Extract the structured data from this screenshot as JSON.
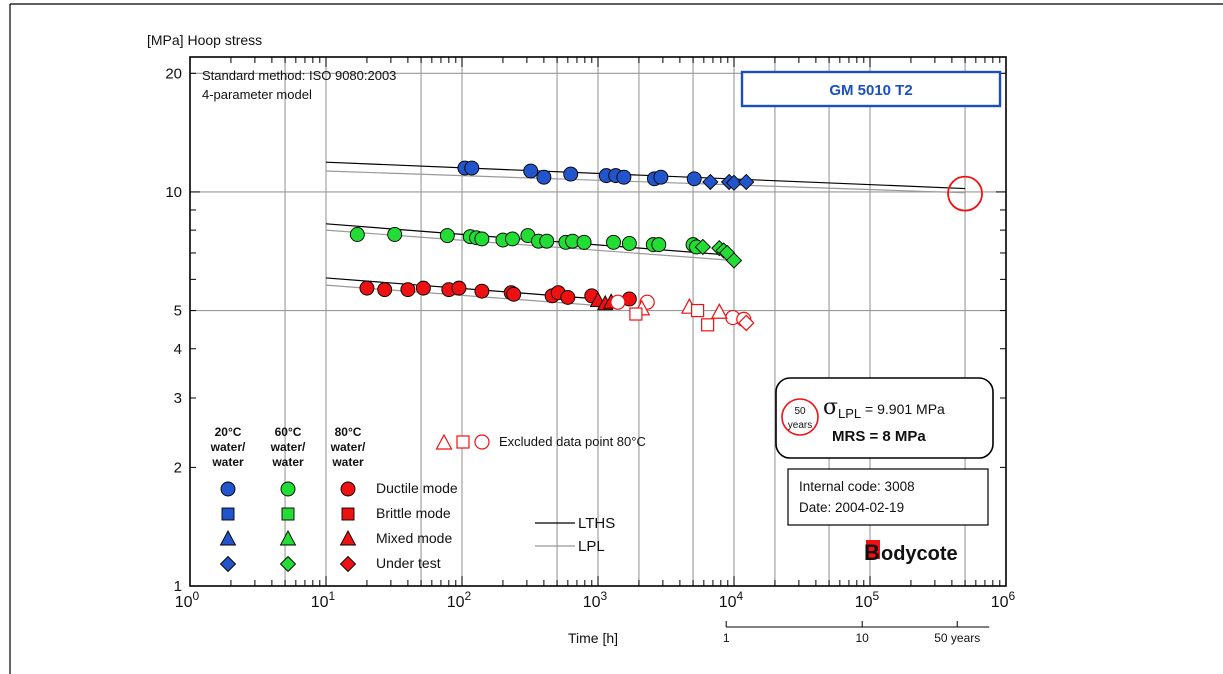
{
  "chart_data": {
    "type": "scatter",
    "x_scale": "log",
    "y_scale": "log",
    "xlim": [
      1,
      1000000
    ],
    "ylim": [
      1,
      22
    ],
    "ylabel": "[MPa] Hoop stress",
    "xlabel": "Time [h]",
    "x_tick_labels": [
      {
        "base": "10",
        "exp": "0"
      },
      {
        "base": "10",
        "exp": "1"
      },
      {
        "base": "10",
        "exp": "2"
      },
      {
        "base": "10",
        "exp": "3"
      },
      {
        "base": "10",
        "exp": "4"
      },
      {
        "base": "10",
        "exp": "5"
      },
      {
        "base": "10",
        "exp": "6"
      }
    ],
    "y_ticks": [
      1,
      2,
      3,
      4,
      5,
      10,
      20
    ],
    "y_tick_labels": [
      "1",
      "2",
      "3",
      "4",
      "5",
      "10",
      "20"
    ],
    "years_axis": {
      "ticks": [
        {
          "label": "1",
          "hours": 8760
        },
        {
          "label": "10",
          "hours": 87600
        },
        {
          "label": "50 years",
          "hours": 438000
        }
      ]
    },
    "grid": true,
    "method_text": [
      "Standard method: ISO 9080:2003",
      "4-parameter model"
    ],
    "material_title": "GM 5010 T2",
    "series": [
      {
        "temp": "20",
        "color": "#2255cc",
        "mode": "ductile",
        "points": [
          [
            105,
            11.5
          ],
          [
            118,
            11.5
          ],
          [
            320,
            11.3
          ],
          [
            400,
            10.9
          ],
          [
            630,
            11.1
          ],
          [
            1150,
            11.0
          ],
          [
            1350,
            11.0
          ],
          [
            1550,
            10.9
          ],
          [
            2600,
            10.8
          ],
          [
            2900,
            10.9
          ],
          [
            5100,
            10.8
          ]
        ]
      },
      {
        "temp": "20",
        "color": "#2255cc",
        "mode": "undertest",
        "points": [
          [
            6700,
            10.6
          ],
          [
            9200,
            10.6
          ],
          [
            10000,
            10.55
          ],
          [
            12300,
            10.6
          ]
        ]
      },
      {
        "temp": "60",
        "color": "#22dd33",
        "mode": "ductile",
        "points": [
          [
            17,
            7.8
          ],
          [
            32,
            7.8
          ],
          [
            78,
            7.75
          ],
          [
            115,
            7.7
          ],
          [
            128,
            7.65
          ],
          [
            140,
            7.6
          ],
          [
            200,
            7.55
          ],
          [
            235,
            7.6
          ],
          [
            305,
            7.75
          ],
          [
            365,
            7.5
          ],
          [
            420,
            7.5
          ],
          [
            580,
            7.45
          ],
          [
            650,
            7.5
          ],
          [
            790,
            7.45
          ],
          [
            1300,
            7.45
          ],
          [
            1700,
            7.4
          ],
          [
            2550,
            7.35
          ],
          [
            2800,
            7.35
          ],
          [
            5000,
            7.35
          ],
          [
            5300,
            7.25
          ]
        ]
      },
      {
        "temp": "60",
        "color": "#22dd33",
        "mode": "undertest",
        "points": [
          [
            5900,
            7.25
          ],
          [
            7800,
            7.2
          ],
          [
            8400,
            7.1
          ],
          [
            8900,
            7.0
          ],
          [
            10000,
            6.7
          ]
        ]
      },
      {
        "temp": "80",
        "color": "#ee1111",
        "mode": "ductile",
        "points": [
          [
            20,
            5.7
          ],
          [
            27,
            5.65
          ],
          [
            40,
            5.65
          ],
          [
            52,
            5.7
          ],
          [
            80,
            5.65
          ],
          [
            95,
            5.7
          ],
          [
            140,
            5.6
          ],
          [
            230,
            5.55
          ],
          [
            240,
            5.5
          ],
          [
            460,
            5.45
          ],
          [
            510,
            5.55
          ],
          [
            600,
            5.4
          ],
          [
            900,
            5.45
          ],
          [
            1700,
            5.35
          ]
        ]
      },
      {
        "temp": "80",
        "color": "#ee1111",
        "mode": "mixed",
        "points": [
          [
            1000,
            5.3
          ],
          [
            1130,
            5.2
          ],
          [
            1250,
            5.25
          ]
        ]
      },
      {
        "temp": "80",
        "color": "#ee1111",
        "mode": "excluded-circle",
        "points": [
          [
            1400,
            5.25
          ],
          [
            2300,
            5.25
          ],
          [
            9800,
            4.8
          ],
          [
            11800,
            4.75
          ]
        ]
      },
      {
        "temp": "80",
        "color": "#ee1111",
        "mode": "excluded-triangle",
        "points": [
          [
            2100,
            5.05
          ],
          [
            4700,
            5.1
          ],
          [
            7800,
            4.95
          ]
        ]
      },
      {
        "temp": "80",
        "color": "#ee1111",
        "mode": "excluded-square",
        "points": [
          [
            1900,
            4.9
          ],
          [
            5400,
            5.0
          ],
          [
            6400,
            4.6
          ]
        ]
      },
      {
        "temp": "80",
        "color": "#ee1111",
        "mode": "excluded-diamond",
        "points": [
          [
            12300,
            4.65
          ]
        ]
      }
    ],
    "regression_lines": [
      {
        "type": "LTHS",
        "from": [
          10,
          11.9
        ],
        "to": [
          500000,
          10.2
        ]
      },
      {
        "type": "LPL",
        "from": [
          10,
          11.3
        ],
        "to": [
          500000,
          9.95
        ]
      },
      {
        "type": "LTHS",
        "from": [
          10,
          8.3
        ],
        "to": [
          10000,
          6.9
        ]
      },
      {
        "type": "LPL",
        "from": [
          10,
          8.0
        ],
        "to": [
          10000,
          6.7
        ]
      },
      {
        "type": "LTHS",
        "from": [
          10,
          6.05
        ],
        "to": [
          1000,
          5.35
        ]
      },
      {
        "type": "LPL",
        "from": [
          10,
          5.8
        ],
        "to": [
          1000,
          5.15
        ]
      }
    ],
    "extrapolation_marker": {
      "x": 500000,
      "y": 9.9
    },
    "legend": {
      "headers": [
        [
          "20°C",
          "water/",
          "water"
        ],
        [
          "60°C",
          "water/",
          "water"
        ],
        [
          "80°C",
          "water/",
          "water"
        ]
      ],
      "modes": [
        "Ductile mode",
        "Brittle mode",
        "Mixed mode",
        "Under test"
      ],
      "excluded_label": "Excluded data point 80°C",
      "line_labels": [
        "LTHS",
        "LPL"
      ]
    },
    "results": {
      "badge_top": "50",
      "badge_bottom": "years",
      "sigma_symbol": "σ",
      "sigma_sub": "LPL",
      "sigma_text": " = 9.901 MPa",
      "mrs_text": "MRS = 8 MPa"
    },
    "info": {
      "line1": "Internal code: 3008",
      "line2": "Date: 2004-02-19"
    },
    "logo": {
      "initial": "B",
      "rest": "odycote"
    },
    "colors": {
      "blue": "#2255cc",
      "green": "#22dd33",
      "red": "#ee1111",
      "grid": "#999999",
      "title_blue": "#1a4fc0"
    }
  }
}
